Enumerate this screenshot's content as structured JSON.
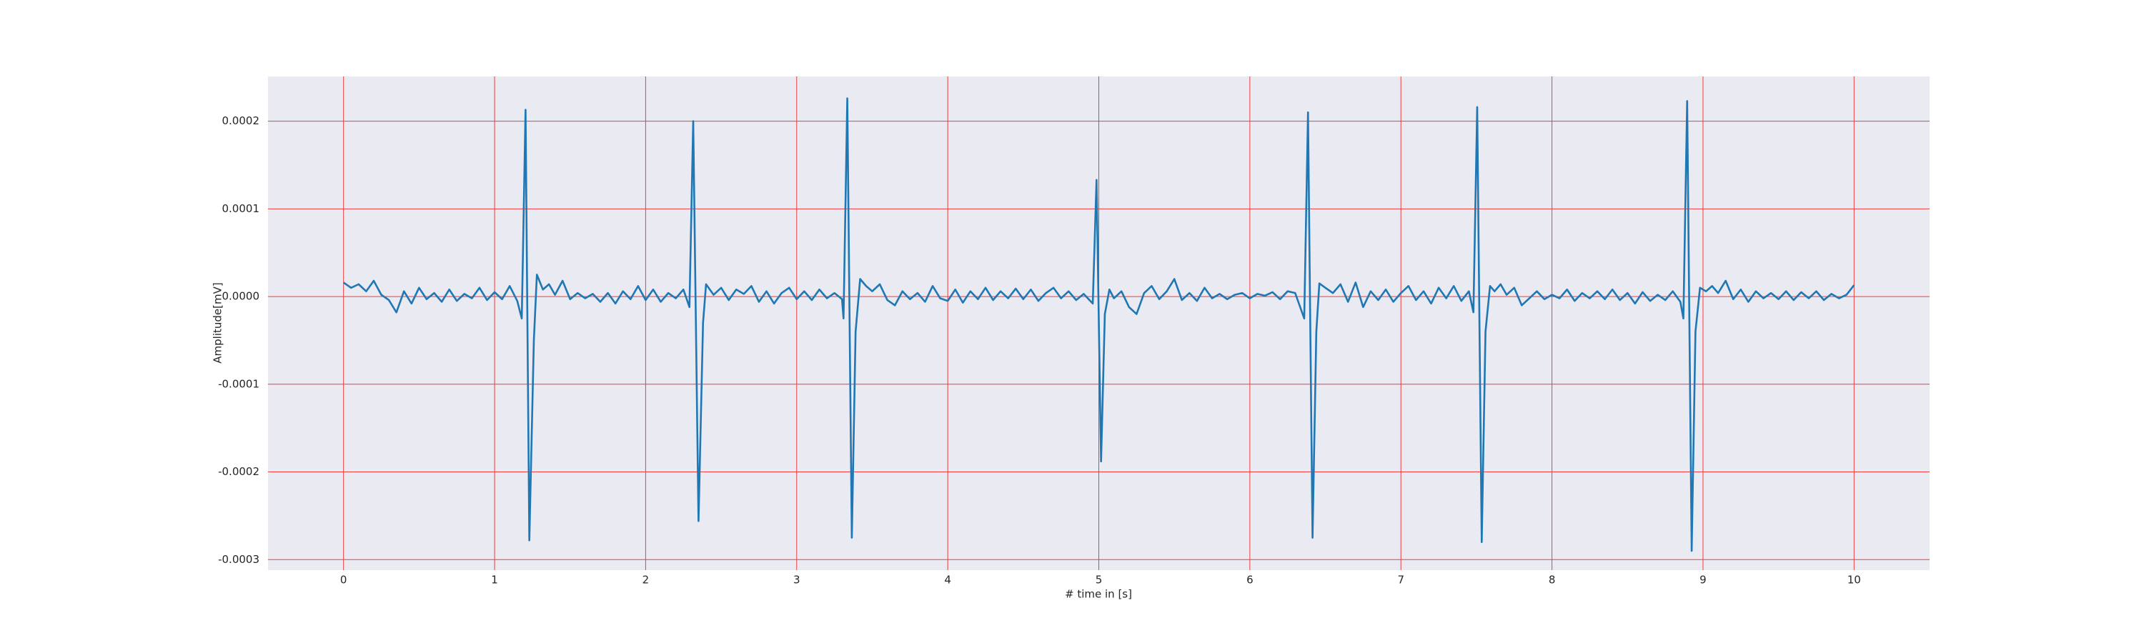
{
  "chart_data": {
    "type": "line",
    "xlabel": "# time in [s]",
    "ylabel": "Amplitude[mV]",
    "x": [
      0,
      0.05,
      0.1,
      0.15,
      0.2,
      0.25,
      0.3,
      0.35,
      0.4,
      0.45,
      0.5,
      0.55,
      0.6,
      0.65,
      0.7,
      0.75,
      0.8,
      0.85,
      0.9,
      0.95,
      1.0,
      1.05,
      1.1,
      1.15,
      1.18,
      1.205,
      1.23,
      1.26,
      1.28,
      1.32,
      1.36,
      1.4,
      1.45,
      1.5,
      1.55,
      1.6,
      1.65,
      1.7,
      1.75,
      1.8,
      1.85,
      1.9,
      1.95,
      2.0,
      2.05,
      2.1,
      2.15,
      2.2,
      2.25,
      2.29,
      2.315,
      2.35,
      2.38,
      2.4,
      2.45,
      2.5,
      2.55,
      2.6,
      2.65,
      2.7,
      2.75,
      2.8,
      2.85,
      2.9,
      2.95,
      3.0,
      3.05,
      3.1,
      3.15,
      3.2,
      3.25,
      3.3,
      3.31,
      3.335,
      3.365,
      3.39,
      3.42,
      3.46,
      3.5,
      3.55,
      3.6,
      3.65,
      3.7,
      3.75,
      3.8,
      3.85,
      3.9,
      3.95,
      4.0,
      4.05,
      4.1,
      4.15,
      4.2,
      4.25,
      4.3,
      4.35,
      4.4,
      4.45,
      4.5,
      4.55,
      4.6,
      4.65,
      4.7,
      4.75,
      4.8,
      4.85,
      4.9,
      4.96,
      4.985,
      5.015,
      5.04,
      5.07,
      5.1,
      5.15,
      5.2,
      5.25,
      5.3,
      5.35,
      5.4,
      5.45,
      5.5,
      5.55,
      5.6,
      5.65,
      5.7,
      5.75,
      5.8,
      5.85,
      5.9,
      5.95,
      6.0,
      6.05,
      6.1,
      6.15,
      6.2,
      6.25,
      6.3,
      6.36,
      6.385,
      6.415,
      6.44,
      6.46,
      6.5,
      6.55,
      6.6,
      6.65,
      6.7,
      6.75,
      6.8,
      6.85,
      6.9,
      6.95,
      7.0,
      7.05,
      7.1,
      7.15,
      7.2,
      7.25,
      7.3,
      7.35,
      7.4,
      7.45,
      7.48,
      7.505,
      7.535,
      7.56,
      7.59,
      7.62,
      7.66,
      7.7,
      7.75,
      7.8,
      7.85,
      7.9,
      7.95,
      8.0,
      8.05,
      8.1,
      8.15,
      8.2,
      8.25,
      8.3,
      8.35,
      8.4,
      8.45,
      8.5,
      8.55,
      8.6,
      8.65,
      8.7,
      8.75,
      8.8,
      8.85,
      8.87,
      8.895,
      8.925,
      8.95,
      8.98,
      9.02,
      9.06,
      9.1,
      9.15,
      9.2,
      9.25,
      9.3,
      9.35,
      9.4,
      9.45,
      9.5,
      9.55,
      9.6,
      9.65,
      9.7,
      9.75,
      9.8,
      9.85,
      9.9,
      9.95,
      10.0
    ],
    "series": [
      {
        "color": "#1f77b4",
        "values": [
          1.6e-05,
          1e-05,
          1.4e-05,
          6e-06,
          1.8e-05,
          2e-06,
          -4e-06,
          -1.8e-05,
          6e-06,
          -8e-06,
          1e-05,
          -3e-06,
          4e-06,
          -6e-06,
          8e-06,
          -5e-06,
          3e-06,
          -2e-06,
          1e-05,
          -4e-06,
          5e-06,
          -3e-06,
          1.2e-05,
          -5e-06,
          -2.5e-05,
          0.000213,
          -0.000278,
          -5e-05,
          2.5e-05,
          8e-06,
          1.4e-05,
          2e-06,
          1.8e-05,
          -3e-06,
          4e-06,
          -2e-06,
          3e-06,
          -6e-06,
          4e-06,
          -8e-06,
          6e-06,
          -3e-06,
          1.2e-05,
          -4e-06,
          8e-06,
          -6e-06,
          4e-06,
          -2e-06,
          8e-06,
          -1.2e-05,
          0.0002,
          -0.000256,
          -3e-05,
          1.4e-05,
          2e-06,
          1e-05,
          -4e-06,
          8e-06,
          3e-06,
          1.2e-05,
          -6e-06,
          6e-06,
          -8e-06,
          4e-06,
          1e-05,
          -3e-06,
          6e-06,
          -4e-06,
          8e-06,
          -2e-06,
          4e-06,
          -3e-06,
          -2.5e-05,
          0.000226,
          -0.000275,
          -4e-05,
          2e-05,
          1.2e-05,
          6e-06,
          1.4e-05,
          -4e-06,
          -1e-05,
          6e-06,
          -3e-06,
          4e-06,
          -6e-06,
          1.2e-05,
          -2e-06,
          -5e-06,
          8e-06,
          -7e-06,
          6e-06,
          -3e-06,
          1e-05,
          -4e-06,
          6e-06,
          -2e-06,
          9e-06,
          -3e-06,
          8e-06,
          -5e-06,
          4e-06,
          1e-05,
          -2e-06,
          6e-06,
          -4e-06,
          3e-06,
          -8e-06,
          0.000133,
          -0.000188,
          -2e-05,
          8e-06,
          -2e-06,
          6e-06,
          -1.2e-05,
          -2e-05,
          4e-06,
          1.2e-05,
          -3e-06,
          6e-06,
          2e-05,
          -4e-06,
          4e-06,
          -5e-06,
          1e-05,
          -2e-06,
          3e-06,
          -3e-06,
          2e-06,
          4e-06,
          -2e-06,
          3e-06,
          1e-06,
          5e-06,
          -3e-06,
          6e-06,
          4e-06,
          -2.5e-05,
          0.00021,
          -0.000275,
          -4e-05,
          1.5e-05,
          1e-05,
          4e-06,
          1.4e-05,
          -6e-06,
          1.6e-05,
          -1.2e-05,
          6e-06,
          -4e-06,
          8e-06,
          -6e-06,
          4e-06,
          1.2e-05,
          -4e-06,
          6e-06,
          -8e-06,
          1e-05,
          -2e-06,
          1.2e-05,
          -5e-06,
          6e-06,
          -1.8e-05,
          0.000216,
          -0.00028,
          -4e-05,
          1.2e-05,
          6e-06,
          1.4e-05,
          2e-06,
          1e-05,
          -1e-05,
          -2e-06,
          6e-06,
          -3e-06,
          2e-06,
          -2e-06,
          8e-06,
          -5e-06,
          4e-06,
          -2e-06,
          6e-06,
          -3e-06,
          8e-06,
          -4e-06,
          4e-06,
          -8e-06,
          5e-06,
          -5e-06,
          2e-06,
          -4e-06,
          6e-06,
          -6e-06,
          -2.5e-05,
          0.000223,
          -0.00029,
          -4e-05,
          1e-05,
          6e-06,
          1.2e-05,
          4e-06,
          1.8e-05,
          -3e-06,
          8e-06,
          -6e-06,
          6e-06,
          -2e-06,
          4e-06,
          -3e-06,
          6e-06,
          -4e-06,
          5e-06,
          -2e-06,
          6e-06,
          -4e-06,
          3e-06,
          -2e-06,
          2e-06,
          1.3e-05
        ]
      }
    ],
    "xlim": [
      -0.5,
      10.5
    ],
    "ylim": [
      -0.000312,
      0.000251
    ],
    "xticks": [
      0,
      1,
      2,
      3,
      4,
      5,
      6,
      7,
      8,
      9,
      10
    ],
    "yticks": [
      -0.0003,
      -0.0002,
      -0.0001,
      {
        "value": 0,
        "label": "0.0000"
      },
      0.0001,
      0.0002
    ],
    "grid": true,
    "grid_color": "#f03c3c",
    "background": "#eaeaf2"
  }
}
